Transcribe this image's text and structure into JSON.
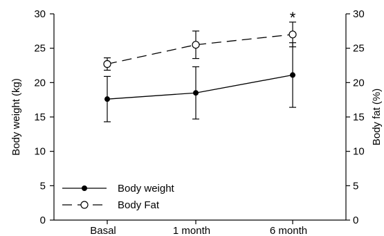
{
  "chart_data": {
    "type": "line",
    "categories": [
      "Basal",
      "1 month",
      "6 month"
    ],
    "ylim": [
      0,
      30
    ],
    "yticks": [
      0,
      5,
      10,
      15,
      20,
      25,
      30
    ],
    "y2lim": [
      0,
      30
    ],
    "y2ticks": [
      0,
      5,
      10,
      15,
      20,
      25,
      30
    ],
    "xlabel": "",
    "ylabel": "Body weight (kg)",
    "y2label": "Body fat (%)",
    "grid": false,
    "legend_position": "bottom-left",
    "series": [
      {
        "name": "Body weight",
        "axis": "left",
        "marker": "filled-circle",
        "line_style": "solid",
        "values": [
          17.6,
          18.5,
          21.1
        ],
        "error": [
          3.3,
          3.8,
          4.7
        ]
      },
      {
        "name": "Body Fat",
        "axis": "right",
        "marker": "open-circle",
        "line_style": "dashed",
        "values": [
          22.7,
          25.5,
          27.0
        ],
        "error": [
          0.9,
          2.0,
          1.8
        ]
      }
    ],
    "annotations": [
      {
        "text": "*",
        "category": "6 month",
        "y": 29.9
      }
    ],
    "colors": {
      "line": "#000000",
      "background": "#ffffff"
    }
  }
}
